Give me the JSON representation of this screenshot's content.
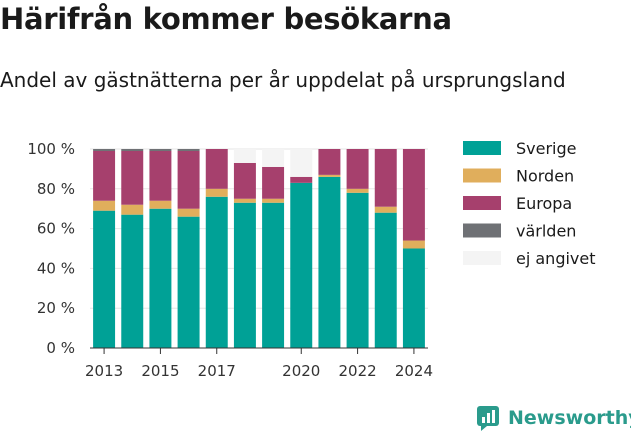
{
  "title": "Härifrån kommer besökarna",
  "subtitle": "Andel av gästnätterna per år uppdelat på ursprungsland",
  "brand": {
    "name": "Newsworthy",
    "icon": "newsworthy-logo-icon",
    "color": "#2a9b8c"
  },
  "chart_data": {
    "type": "bar",
    "stacked": true,
    "x": [
      2013,
      2014,
      2015,
      2016,
      2017,
      2018,
      2019,
      2020,
      2021,
      2022,
      2023,
      2024
    ],
    "x_tick_labels": [
      "2013",
      "2015",
      "2017",
      "2020",
      "2022",
      "2024"
    ],
    "x_tick_values": [
      2013,
      2015,
      2017,
      2020,
      2022,
      2024
    ],
    "y_ticks": [
      "0 %",
      "20 %",
      "40 %",
      "60 %",
      "80 %",
      "100 %"
    ],
    "y_tick_values": [
      0,
      20,
      40,
      60,
      80,
      100
    ],
    "ylim": [
      0,
      100
    ],
    "grid": true,
    "legend_position": "right",
    "series": [
      {
        "name": "Sverige",
        "color": "#00a196",
        "values": [
          69,
          67,
          70,
          66,
          76,
          73,
          73,
          83,
          86,
          78,
          68,
          50
        ]
      },
      {
        "name": "Norden",
        "color": "#e0ae5c",
        "values": [
          5,
          5,
          4,
          4,
          4,
          2,
          2,
          0,
          1,
          2,
          3,
          4
        ]
      },
      {
        "name": "Europa",
        "color": "#a6406d",
        "values": [
          25,
          27,
          25,
          29,
          20,
          18,
          16,
          3,
          13,
          20,
          29,
          46
        ]
      },
      {
        "name": "världen",
        "color": "#6f7175",
        "values": [
          1,
          1,
          1,
          1,
          0,
          0,
          0,
          0,
          0,
          0,
          0,
          0
        ]
      },
      {
        "name": "ej angivet",
        "color": "#f4f4f4",
        "values": [
          0,
          0,
          0,
          0,
          0,
          7,
          9,
          14,
          0,
          0,
          0,
          0
        ]
      }
    ]
  }
}
